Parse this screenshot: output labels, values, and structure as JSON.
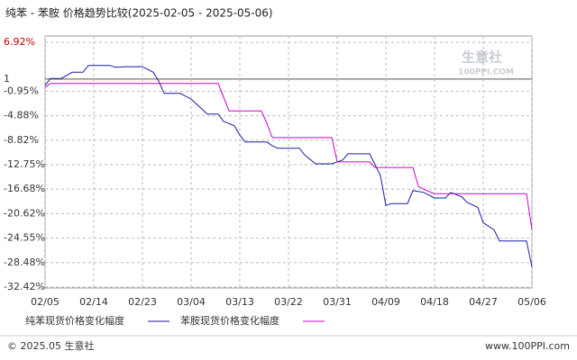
{
  "chart_data": {
    "type": "line",
    "title": "纯苯 - 苯胺 价格趋势比较(2025-02-05 - 2025-05-06)",
    "xlim": [
      "02/05",
      "05/06"
    ],
    "xticks": [
      "02/05",
      "02/14",
      "02/23",
      "03/04",
      "03/13",
      "03/22",
      "03/31",
      "04/09",
      "04/18",
      "04/27",
      "05/06"
    ],
    "ylim": [
      -32.42,
      6.92
    ],
    "yticks": [
      {
        "value": 6.92,
        "label": "6.92%"
      },
      1,
      {
        "value": -0.95,
        "label": "-0.95%"
      },
      {
        "value": -4.88,
        "label": "-4.88%"
      },
      {
        "value": -8.82,
        "label": "-8.82%"
      },
      {
        "value": -12.75,
        "label": "-12.75%"
      },
      {
        "value": -16.68,
        "label": "-16.68%"
      },
      {
        "value": -20.62,
        "label": "-20.62%"
      },
      {
        "value": -24.55,
        "label": "-24.55%"
      },
      {
        "value": -28.48,
        "label": "-28.48%"
      },
      {
        "value": -32.42,
        "label": "-32.42%"
      }
    ],
    "grid": true,
    "series": [
      {
        "name": "纯苯现货价格变化幅度",
        "color": "#1a1aa6",
        "x": [
          "02/05",
          "02/06",
          "02/08",
          "02/10",
          "02/12",
          "02/13",
          "02/17",
          "02/18",
          "02/20",
          "02/23",
          "02/25",
          "02/26",
          "02/27",
          "03/02",
          "03/04",
          "03/07",
          "03/09",
          "03/10",
          "03/12",
          "03/13",
          "03/14",
          "03/18",
          "03/19",
          "03/20",
          "03/24",
          "03/25",
          "03/27",
          "03/30",
          "04/01",
          "04/02",
          "04/06",
          "04/08",
          "04/09",
          "04/10",
          "04/13",
          "04/14",
          "04/16",
          "04/18",
          "04/20",
          "04/21",
          "04/23",
          "04/24",
          "04/26",
          "04/27",
          "04/29",
          "04/30",
          "05/05",
          "05/06"
        ],
        "values": [
          0,
          1.1,
          1.1,
          2.1,
          2.1,
          3.2,
          3.2,
          2.9,
          3.0,
          3.0,
          2.1,
          0.7,
          -1.3,
          -1.3,
          -2.2,
          -4.6,
          -4.6,
          -5.8,
          -6.5,
          -8.0,
          -9.1,
          -9.1,
          -9.7,
          -10.1,
          -10.1,
          -11.2,
          -12.6,
          -12.6,
          -12.0,
          -11.0,
          -11.0,
          -14.5,
          -19.3,
          -19.0,
          -19.0,
          -16.9,
          -17.2,
          -18.1,
          -18.1,
          -17.2,
          -17.9,
          -18.8,
          -19.6,
          -22.1,
          -23.2,
          -25.0,
          -25.0,
          -29.2
        ]
      },
      {
        "name": "苯胺现货价格变化幅度",
        "color": "#cc00cc",
        "x": [
          "02/05",
          "02/06",
          "03/09",
          "03/11",
          "03/17",
          "03/18",
          "03/19",
          "03/30",
          "03/31",
          "04/06",
          "04/07",
          "04/14",
          "04/15",
          "04/16",
          "04/18",
          "05/05",
          "05/06"
        ],
        "values": [
          -0.3,
          0.3,
          0.3,
          -4.1,
          -4.1,
          -6.1,
          -8.4,
          -8.4,
          -12.3,
          -12.3,
          -13.2,
          -13.2,
          -16.2,
          -16.7,
          -17.4,
          -17.4,
          -23.2
        ]
      }
    ],
    "watermark": [
      "生意社",
      "100PPI.COM"
    ],
    "footer": {
      "left": "© 2025.05 生意社",
      "right": "www.100PPI.com"
    }
  }
}
